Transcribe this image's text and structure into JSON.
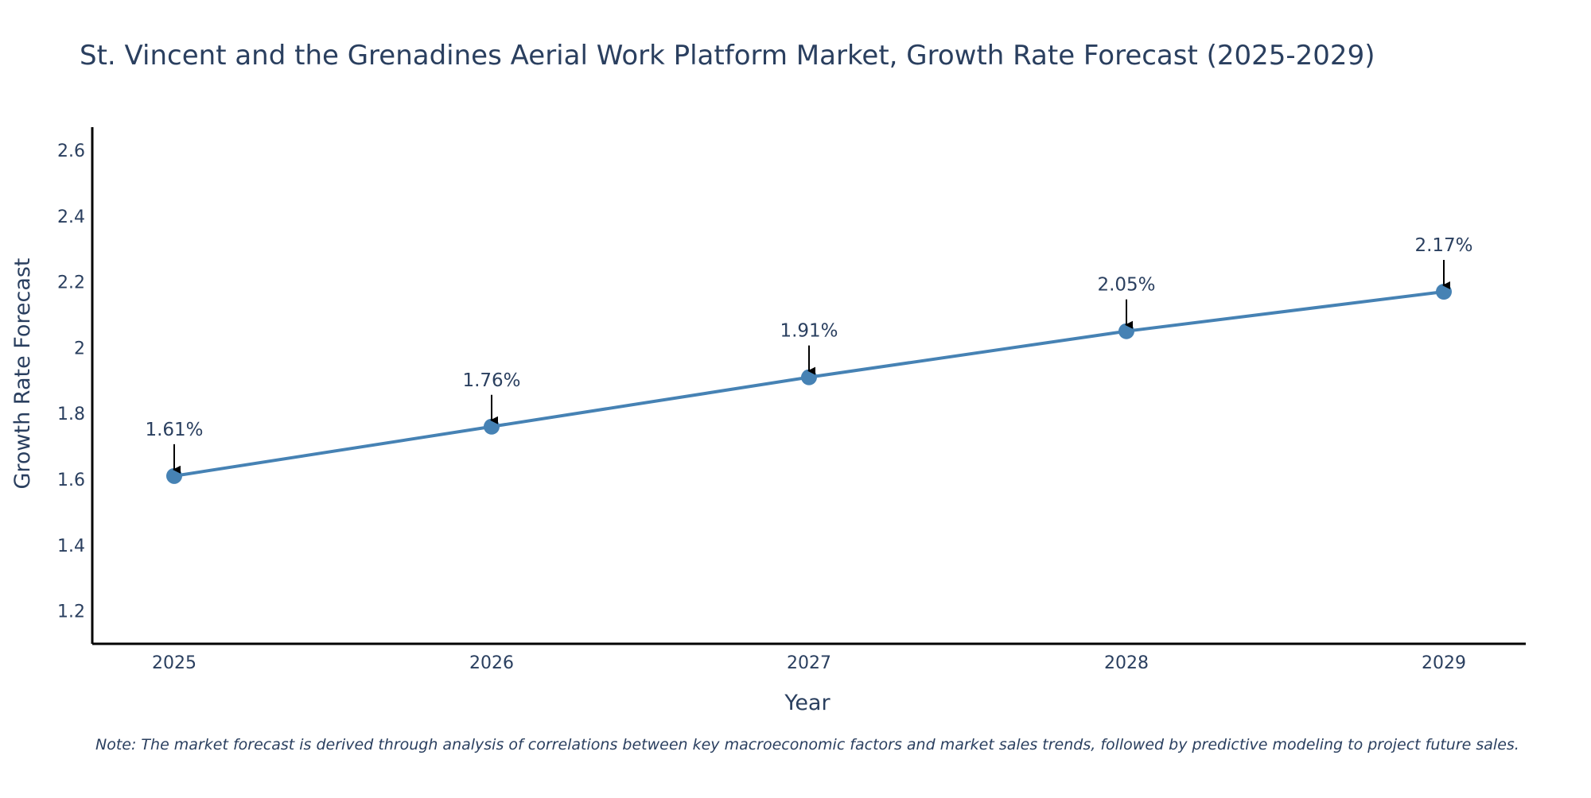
{
  "chart_data": {
    "type": "line",
    "title": "St. Vincent and the Grenadines Aerial Work Platform Market, Growth Rate Forecast (2025-2029)",
    "xlabel": "Year",
    "ylabel": "Growth Rate Forecast",
    "categories": [
      "2025",
      "2026",
      "2027",
      "2028",
      "2029"
    ],
    "series": [
      {
        "name": "Growth Rate Forecast",
        "values": [
          1.61,
          1.76,
          1.91,
          2.05,
          2.17
        ],
        "labels": [
          "1.61%",
          "1.76%",
          "1.91%",
          "2.05%",
          "2.17%"
        ]
      }
    ],
    "ylim": [
      1.1,
      2.67
    ],
    "yticks": [
      {
        "value": 1.2,
        "label": "1.2"
      },
      {
        "value": 1.4,
        "label": "1.4"
      },
      {
        "value": 1.6,
        "label": "1.6"
      },
      {
        "value": 1.8,
        "label": "1.8"
      },
      {
        "value": 2.0,
        "label": "2"
      },
      {
        "value": 2.2,
        "label": "2.2"
      },
      {
        "value": 2.4,
        "label": "2.4"
      },
      {
        "value": 2.6,
        "label": "2.6"
      }
    ],
    "grid": false,
    "note": "Note: The market forecast is derived through analysis of correlations between key macroeconomic factors and market sales trends, followed by predictive modeling to project future sales.",
    "colors": {
      "line": "#4682b4",
      "marker": "#4682b4",
      "arrow": "#000000",
      "axis": "#000000",
      "text": "#2a3f5f"
    }
  }
}
